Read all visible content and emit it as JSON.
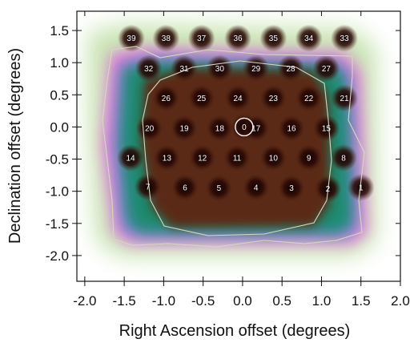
{
  "chart_data": {
    "type": "heatmap",
    "title": "",
    "xlabel": "Right Ascension offset (degrees)",
    "ylabel": "Declination offset (degrees)",
    "xlim": [
      -2.1,
      2.0
    ],
    "ylim": [
      -2.4,
      1.8
    ],
    "x_ticks": [
      -2.0,
      -1.5,
      -1.0,
      -0.5,
      0.0,
      0.5,
      1.0,
      1.5,
      2.0
    ],
    "x_tick_labels": [
      "-2.0",
      "-1.5",
      "-1.0",
      "-0.5",
      "0.0",
      "0.5",
      "1.0",
      "1.5",
      "2.0"
    ],
    "y_ticks": [
      -2.0,
      -1.5,
      -1.0,
      -0.5,
      0.0,
      0.5,
      1.0,
      1.5
    ],
    "y_tick_labels": [
      "-2.0",
      "-1.5",
      "-1.0",
      "-0.5",
      "0.0",
      "0.5",
      "1.0",
      "1.5"
    ],
    "grid": false,
    "colors": {
      "outer": "#ffffff",
      "ring_green": "#c8e4b2",
      "ring_magenta": "#ee66e6",
      "ring_blue": "#6b8bd0",
      "mid_teal": "#1e8a6e",
      "inner_brown": "#5a2a18",
      "core_dark": "#120202",
      "contour": "#d8d8c0",
      "label_text": "#ffffff"
    },
    "beams": [
      {
        "id": "0",
        "x": 0.02,
        "y": 0.0
      },
      {
        "id": "1",
        "x": 1.5,
        "y": -0.94
      },
      {
        "id": "2",
        "x": 1.08,
        "y": -0.96
      },
      {
        "id": "3",
        "x": 0.62,
        "y": -0.95
      },
      {
        "id": "4",
        "x": 0.17,
        "y": -0.94
      },
      {
        "id": "5",
        "x": -0.3,
        "y": -0.95
      },
      {
        "id": "6",
        "x": -0.73,
        "y": -0.94
      },
      {
        "id": "7",
        "x": -1.2,
        "y": -0.93
      },
      {
        "id": "8",
        "x": 1.28,
        "y": -0.48
      },
      {
        "id": "9",
        "x": 0.84,
        "y": -0.48
      },
      {
        "id": "10",
        "x": 0.39,
        "y": -0.48
      },
      {
        "id": "11",
        "x": -0.07,
        "y": -0.48
      },
      {
        "id": "12",
        "x": -0.51,
        "y": -0.48
      },
      {
        "id": "13",
        "x": -0.96,
        "y": -0.48
      },
      {
        "id": "14",
        "x": -1.42,
        "y": -0.48
      },
      {
        "id": "15",
        "x": 1.06,
        "y": -0.02
      },
      {
        "id": "16",
        "x": 0.62,
        "y": -0.02
      },
      {
        "id": "17",
        "x": 0.17,
        "y": -0.02
      },
      {
        "id": "18",
        "x": -0.29,
        "y": -0.02
      },
      {
        "id": "19",
        "x": -0.74,
        "y": -0.02
      },
      {
        "id": "20",
        "x": -1.18,
        "y": -0.02
      },
      {
        "id": "21",
        "x": 1.29,
        "y": 0.45
      },
      {
        "id": "22",
        "x": 0.84,
        "y": 0.45
      },
      {
        "id": "23",
        "x": 0.39,
        "y": 0.45
      },
      {
        "id": "24",
        "x": -0.06,
        "y": 0.45
      },
      {
        "id": "25",
        "x": -0.52,
        "y": 0.45
      },
      {
        "id": "26",
        "x": -0.97,
        "y": 0.45
      },
      {
        "id": "27",
        "x": 1.06,
        "y": 0.91
      },
      {
        "id": "28",
        "x": 0.61,
        "y": 0.91
      },
      {
        "id": "29",
        "x": 0.17,
        "y": 0.91
      },
      {
        "id": "30",
        "x": -0.29,
        "y": 0.91
      },
      {
        "id": "31",
        "x": -0.74,
        "y": 0.91
      },
      {
        "id": "32",
        "x": -1.19,
        "y": 0.91
      },
      {
        "id": "33",
        "x": 1.29,
        "y": 1.38
      },
      {
        "id": "34",
        "x": 0.84,
        "y": 1.38
      },
      {
        "id": "35",
        "x": 0.39,
        "y": 1.38
      },
      {
        "id": "36",
        "x": -0.06,
        "y": 1.38
      },
      {
        "id": "37",
        "x": -0.52,
        "y": 1.38
      },
      {
        "id": "38",
        "x": -0.97,
        "y": 1.38
      },
      {
        "id": "39",
        "x": -1.41,
        "y": 1.38
      }
    ]
  }
}
